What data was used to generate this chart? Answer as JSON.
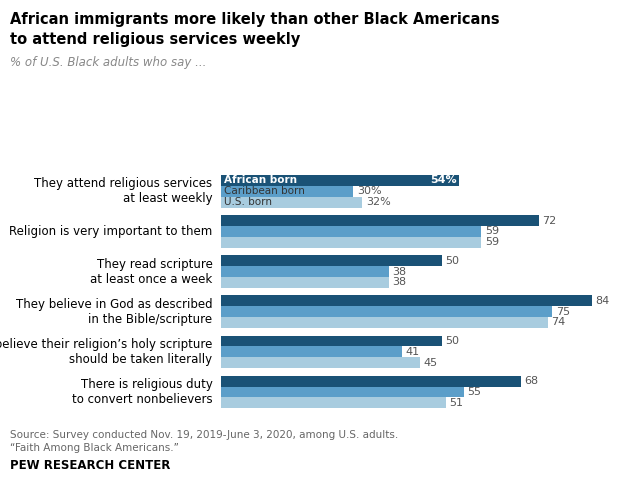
{
  "title_line1": "African immigrants more likely than other Black Americans",
  "title_line2": "to attend religious services weekly",
  "subtitle": "% of U.S. Black adults who say ...",
  "categories": [
    "They attend religious services\nat least weekly",
    "Religion is very important to them",
    "They read scripture\nat least once a week",
    "They believe in God as described\nin the Bible/scripture",
    "They believe their religion’s holy scripture\nshould be taken literally",
    "There is religious duty\nto convert nonbelievers"
  ],
  "african_born": [
    54,
    72,
    50,
    84,
    50,
    68
  ],
  "caribbean_born": [
    30,
    59,
    38,
    75,
    41,
    55
  ],
  "us_born": [
    32,
    59,
    38,
    74,
    45,
    51
  ],
  "color_african": "#1a5276",
  "color_caribbean": "#5b9ec9",
  "color_us": "#a8ccdf",
  "source_line1": "Source: Survey conducted Nov. 19, 2019-June 3, 2020, among U.S. adults.",
  "source_line2": "“Faith Among Black Americans.”",
  "footer": "PEW RESEARCH CENTER",
  "legend_labels": [
    "African born",
    "Caribbean born",
    "U.S. born"
  ],
  "bar_height": 0.27,
  "xlim_max": 92
}
